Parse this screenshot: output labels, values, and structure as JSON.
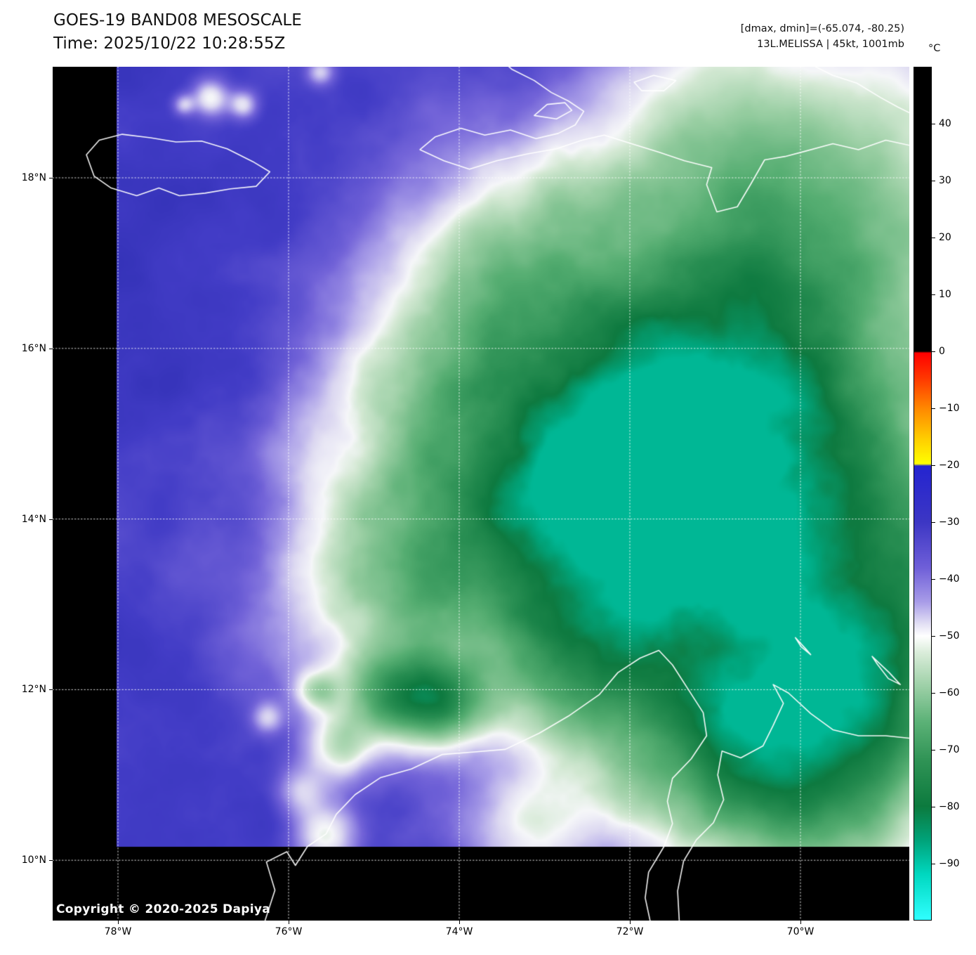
{
  "header": {
    "title": "GOES-19 BAND08 MESOSCALE",
    "time_line": "Time: 2025/10/22 10:28:55Z",
    "dmax_dmin": "[dmax, dmin]=(-65.074, -80.25)",
    "storm_info": "13L.MELISSA | 45kt, 1001mb"
  },
  "footer": {
    "copyright": "Copyright © 2020-2025 Dapiya"
  },
  "axes": {
    "lat_tick_labels": [
      "18°N",
      "16°N",
      "14°N",
      "12°N",
      "10°N"
    ],
    "lat_tick_values": [
      18,
      16,
      14,
      12,
      10
    ],
    "lon_tick_labels": [
      "78°W",
      "76°W",
      "74°W",
      "72°W",
      "70°W"
    ],
    "lon_tick_values": [
      78,
      76,
      74,
      72,
      70
    ]
  },
  "colorbar": {
    "unit": "°C",
    "vmin": -100,
    "vmax": 50,
    "tick_labels": [
      "40",
      "30",
      "20",
      "10",
      "0",
      "−10",
      "−20",
      "−30",
      "−40",
      "−50",
      "−60",
      "−70",
      "−80",
      "−90"
    ],
    "tick_values": [
      40,
      30,
      20,
      10,
      0,
      -10,
      -20,
      -30,
      -40,
      -50,
      -60,
      -70,
      -80,
      -90
    ],
    "stops": [
      {
        "pct": 0,
        "color": "#000000"
      },
      {
        "pct": 33.3,
        "color": "#000000"
      },
      {
        "pct": 33.5,
        "color": "#ff0000"
      },
      {
        "pct": 36.5,
        "color": "#ff3800"
      },
      {
        "pct": 40,
        "color": "#ff8800"
      },
      {
        "pct": 43.5,
        "color": "#ffcc00"
      },
      {
        "pct": 46.5,
        "color": "#ffff00"
      },
      {
        "pct": 46.75,
        "color": "#2424d0"
      },
      {
        "pct": 53.3,
        "color": "#3c36c4"
      },
      {
        "pct": 58.7,
        "color": "#6f5fd8"
      },
      {
        "pct": 62.7,
        "color": "#a89ce8"
      },
      {
        "pct": 65.3,
        "color": "#e3e0f4"
      },
      {
        "pct": 66.7,
        "color": "#ffffff"
      },
      {
        "pct": 68.7,
        "color": "#d9ecd9"
      },
      {
        "pct": 72,
        "color": "#a6d4ae"
      },
      {
        "pct": 76.7,
        "color": "#5cb277"
      },
      {
        "pct": 81.3,
        "color": "#2f9355"
      },
      {
        "pct": 86.7,
        "color": "#0c7a3e"
      },
      {
        "pct": 90.7,
        "color": "#00a37a"
      },
      {
        "pct": 94.7,
        "color": "#00d8c0"
      },
      {
        "pct": 100,
        "color": "#30ffff"
      }
    ]
  },
  "chart_data": {
    "type": "heatmap",
    "title": "GOES-19 BAND08 MESOSCALE",
    "time_utc": "2025/10/22 10:28:55Z",
    "satellite": "GOES-19",
    "band": "BAND08",
    "sector": "MESOSCALE",
    "unit": "°C",
    "storm": {
      "id": "13L",
      "name": "MELISSA",
      "intensity_kt": 45,
      "pressure_mb": 1001
    },
    "dmax_c": -65.074,
    "dmin_c": -80.25,
    "lat_range_n": [
      9.3,
      19.3
    ],
    "lon_range_w": [
      78.8,
      68.7
    ],
    "colorbar_range_c": [
      -100,
      50
    ],
    "grid": "dotted white lat/lon lines every 2 degrees",
    "description": "Brightness-temperature map: blue/purple background −25 to −45°C, white ring ≈ −50°C, large green cold cloud shield of Tropical Storm Melissa centered near 13.8°N 72.5°W with coldest tops ≈ −80 to −85°C (teal-green), pale shield extending northeast over Hispaniola; black margins are outside the mesoscale sector. Coastlines (Jamaica, Hispaniola, Colombia/Venezuela, Aruba, Curaçao) drawn in white."
  }
}
